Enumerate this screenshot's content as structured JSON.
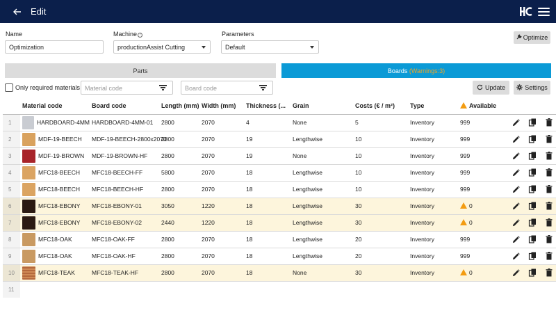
{
  "header": {
    "title": "Edit",
    "back_icon": "arrow-left-icon",
    "logo_icon": "brand-logo-icon",
    "menu_icon": "hamburger-menu-icon"
  },
  "form": {
    "name_label": "Name",
    "name_value": "Optimization",
    "machine_label": "Machine",
    "machine_value": "productionAssist Cutting",
    "parameters_label": "Parameters",
    "parameters_value": "Default",
    "optimize_label": "Optimize"
  },
  "tabs": {
    "parts_label": "Parts",
    "boards_label": "Boards",
    "boards_warning": "(Warnings:3)"
  },
  "toolbar": {
    "only_required_label": "Only required materials",
    "material_code_placeholder": "Material code",
    "board_code_placeholder": "Board code",
    "update_label": "Update",
    "settings_label": "Settings"
  },
  "table": {
    "columns": [
      "Material code",
      "Board code",
      "Length (mm)",
      "Width (mm)",
      "Thickness (...",
      "Grain",
      "Costs (€ / m²)",
      "Type",
      "Available"
    ],
    "rows": [
      {
        "idx": "1",
        "material": "HARDBOARD-4MM",
        "board": "HARDBOARD-4MM-01",
        "length": "2800",
        "width": "2070",
        "thickness": "4",
        "grain": "None",
        "costs": "5",
        "type": "Inventory",
        "available": "999",
        "swatch": "#c9ccd2",
        "warning": false
      },
      {
        "idx": "2",
        "material": "MDF-19-BEECH",
        "board": "MDF-19-BEECH-2800x2070",
        "length": "2800",
        "width": "2070",
        "thickness": "19",
        "grain": "Lengthwise",
        "costs": "10",
        "type": "Inventory",
        "available": "999",
        "swatch": "#d9a25e",
        "warning": false
      },
      {
        "idx": "3",
        "material": "MDF-19-BROWN",
        "board": "MDF-19-BROWN-HF",
        "length": "2800",
        "width": "2070",
        "thickness": "19",
        "grain": "None",
        "costs": "10",
        "type": "Inventory",
        "available": "999",
        "swatch": "#a8242a",
        "warning": false
      },
      {
        "idx": "4",
        "material": "MFC18-BEECH",
        "board": "MFC18-BEECH-FF",
        "length": "5800",
        "width": "2070",
        "thickness": "18",
        "grain": "Lengthwise",
        "costs": "10",
        "type": "Inventory",
        "available": "999",
        "swatch": "#dba462",
        "warning": false
      },
      {
        "idx": "5",
        "material": "MFC18-BEECH",
        "board": "MFC18-BEECH-HF",
        "length": "2800",
        "width": "2070",
        "thickness": "18",
        "grain": "Lengthwise",
        "costs": "10",
        "type": "Inventory",
        "available": "999",
        "swatch": "#dba462",
        "warning": false
      },
      {
        "idx": "6",
        "material": "MFC18-EBONY",
        "board": "MFC18-EBONY-01",
        "length": "3050",
        "width": "1220",
        "thickness": "18",
        "grain": "Lengthwise",
        "costs": "30",
        "type": "Inventory",
        "available": "0",
        "swatch": "#2b1a12",
        "warning": true
      },
      {
        "idx": "7",
        "material": "MFC18-EBONY",
        "board": "MFC18-EBONY-02",
        "length": "2440",
        "width": "1220",
        "thickness": "18",
        "grain": "Lengthwise",
        "costs": "30",
        "type": "Inventory",
        "available": "0",
        "swatch": "#2b1a12",
        "warning": true
      },
      {
        "idx": "8",
        "material": "MFC18-OAK",
        "board": "MFC18-OAK-FF",
        "length": "2800",
        "width": "2070",
        "thickness": "18",
        "grain": "Lengthwise",
        "costs": "20",
        "type": "Inventory",
        "available": "999",
        "swatch": "#c99a62",
        "warning": false
      },
      {
        "idx": "9",
        "material": "MFC18-OAK",
        "board": "MFC18-OAK-HF",
        "length": "2800",
        "width": "2070",
        "thickness": "18",
        "grain": "Lengthwise",
        "costs": "20",
        "type": "Inventory",
        "available": "999",
        "swatch": "#c99a62",
        "warning": false
      },
      {
        "idx": "10",
        "material": "MFC18-TEAK",
        "board": "MFC18-TEAK-HF",
        "length": "2800",
        "width": "2070",
        "thickness": "18",
        "grain": "None",
        "costs": "30",
        "type": "Inventory",
        "available": "0",
        "swatch": "#b4683c",
        "warning": true
      },
      {
        "idx": "11",
        "material": "",
        "board": "",
        "length": "",
        "width": "",
        "thickness": "",
        "grain": "",
        "costs": "",
        "type": "",
        "available": "",
        "swatch": "",
        "warning": false
      }
    ]
  },
  "colors": {
    "header_bg": "#0b1f4b",
    "boards_tab_bg": "#0b9ad6",
    "warning": "#f39c12",
    "warning_row_bg": "#fdf5dc"
  },
  "icons": {
    "edit": "pencil-icon",
    "copy": "copy-icon",
    "delete": "trash-icon",
    "filter": "filter-icon",
    "update": "refresh-icon",
    "settings": "gear-icon",
    "optimize": "wrench-icon",
    "warning": "warning-triangle-icon"
  }
}
